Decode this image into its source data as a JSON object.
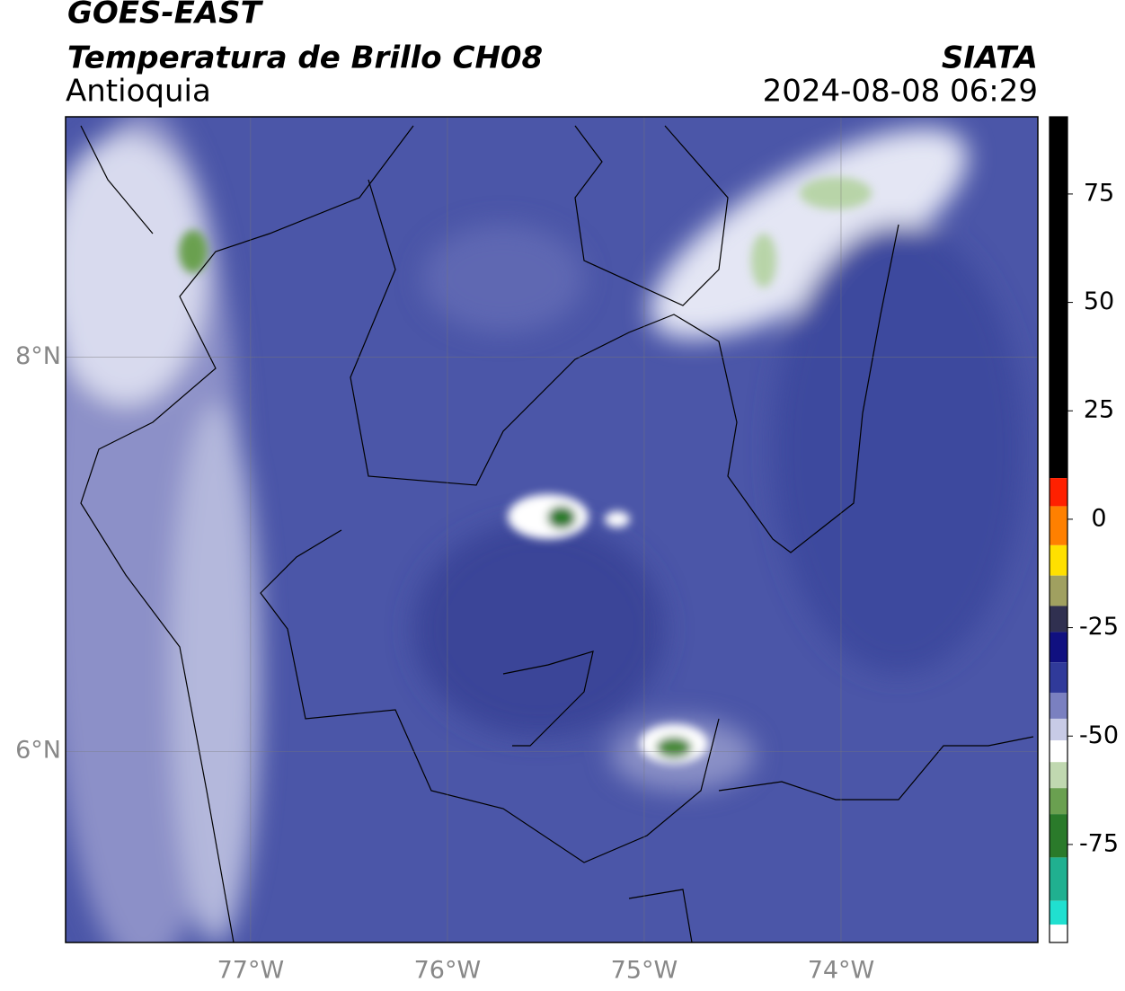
{
  "header": {
    "satellite": "GOES-EAST",
    "product": "Temperatura de Brillo CH08",
    "region": "Antioquia",
    "source": "SIATA",
    "datetime": "2024-08-08 06:29"
  },
  "map": {
    "xlim": [
      -77.94,
      -73.0
    ],
    "ylim": [
      5.03,
      9.22
    ],
    "xticks": [
      {
        "value": -77,
        "label": "77°W"
      },
      {
        "value": -76,
        "label": "76°W"
      },
      {
        "value": -75,
        "label": "75°W"
      },
      {
        "value": -74,
        "label": "74°W"
      }
    ],
    "yticks": [
      {
        "value": 8,
        "label": "8°N"
      },
      {
        "value": 6,
        "label": "6°N"
      }
    ],
    "grid": true
  },
  "colorbar": {
    "lim": [
      -97.6,
      92.8
    ],
    "ticks": [
      75,
      50,
      25,
      0,
      -25,
      -50,
      -75
    ],
    "stops": [
      {
        "value": 92.8,
        "color": "#000000"
      },
      {
        "value": 9.5,
        "color": "#ff2000"
      },
      {
        "value": 3,
        "color": "#ff8000"
      },
      {
        "value": -6,
        "color": "#ffe000"
      },
      {
        "value": -13,
        "color": "#a0a060"
      },
      {
        "value": -20,
        "color": "#303050"
      },
      {
        "value": -26,
        "color": "#101080"
      },
      {
        "value": -33,
        "color": "#303a9a"
      },
      {
        "value": -40,
        "color": "#7a80c0"
      },
      {
        "value": -46,
        "color": "#c8cbe6"
      },
      {
        "value": -51,
        "color": "#ffffff"
      },
      {
        "value": -56,
        "color": "#c0d8b0"
      },
      {
        "value": -62,
        "color": "#6aa050"
      },
      {
        "value": -68,
        "color": "#2a7a2a"
      },
      {
        "value": -78,
        "color": "#20b090"
      },
      {
        "value": -88,
        "color": "#20e0d0"
      },
      {
        "value": -93.5,
        "color": "#ffffff"
      }
    ]
  }
}
